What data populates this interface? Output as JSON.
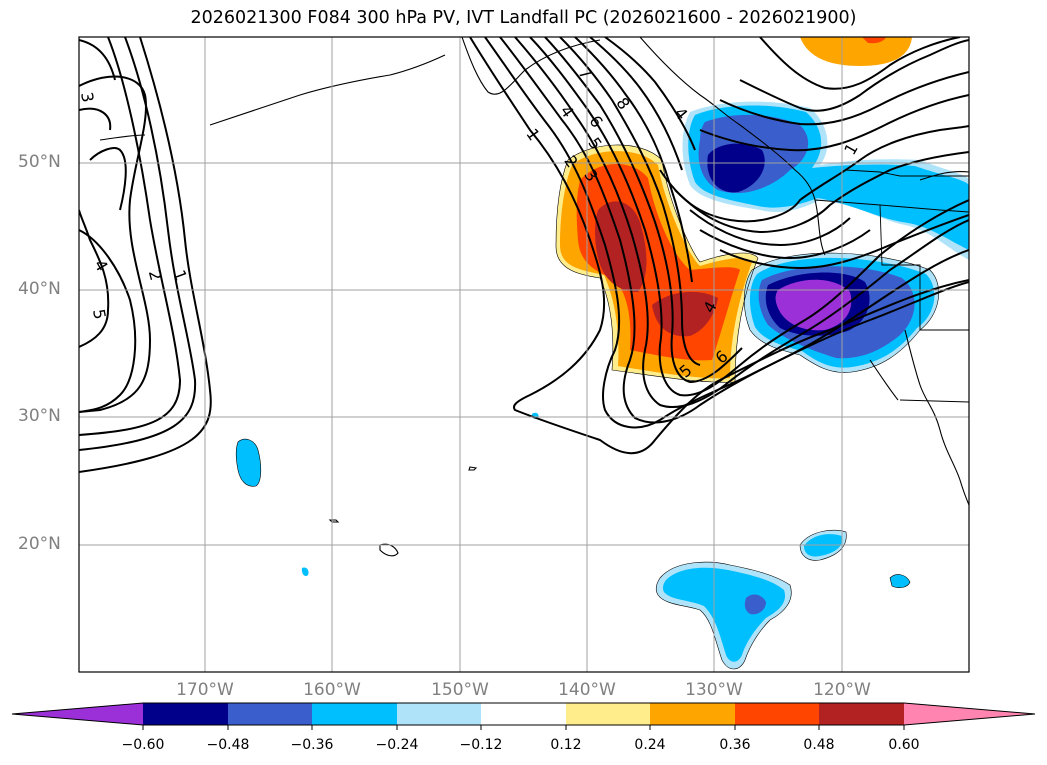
{
  "title": "2026021300 F084 300 hPa PV, IVT Landfall PC (2026021600 - 2026021900)",
  "lat_labels": [
    "50°N",
    "40°N",
    "30°N",
    "20°N"
  ],
  "lon_labels": [
    "170°W",
    "160°W",
    "150°W",
    "140°W",
    "130°W",
    "120°W"
  ],
  "colorbar": {
    "ticks": [
      "−0.60",
      "−0.48",
      "−0.36",
      "−0.24",
      "−0.12",
      "0.12",
      "0.24",
      "0.36",
      "0.48",
      "0.60"
    ],
    "colors": [
      "#9b30d9",
      "#00008b",
      "#3a5fcd",
      "#00bfff",
      "#afe3fa",
      "#ffffff",
      "#ffec8b",
      "#ffa500",
      "#ff4500",
      "#b22222",
      "#ff85b0"
    ]
  },
  "contour_labels": [
    "3",
    "4",
    "5",
    "2",
    "1",
    "1",
    "2",
    "3",
    "4",
    "5",
    "6",
    "7",
    "8",
    "4",
    "6",
    "5",
    "4",
    "1"
  ]
}
